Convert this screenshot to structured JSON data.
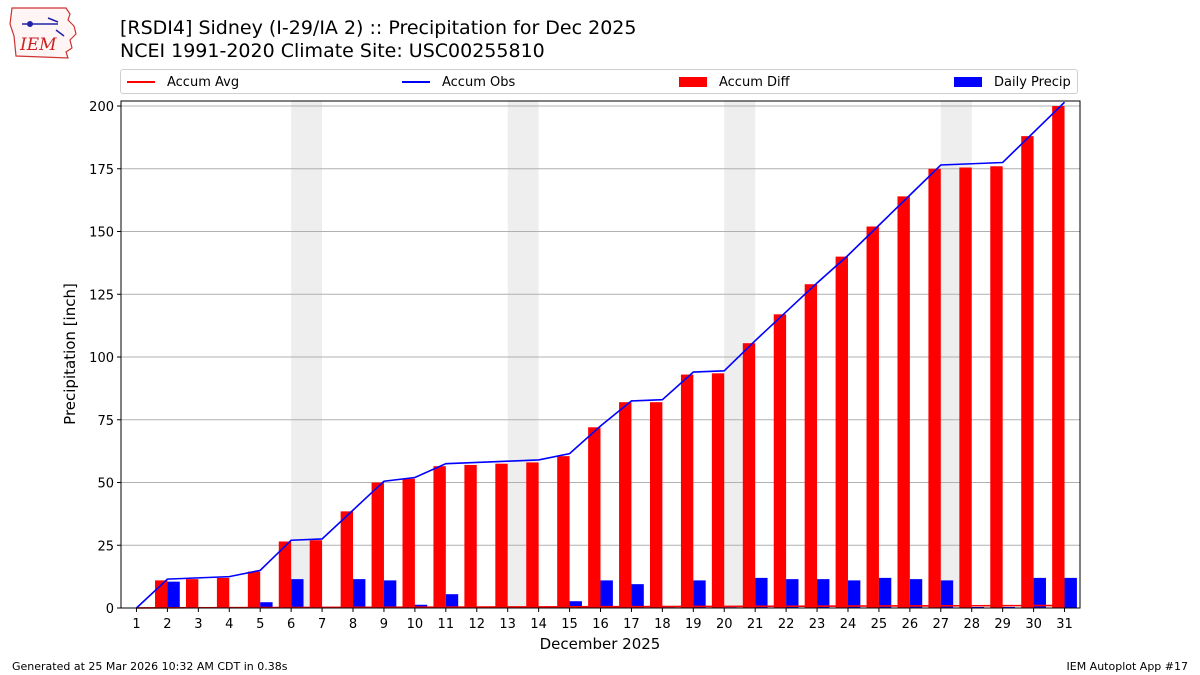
{
  "logo": {
    "text": "IEM"
  },
  "header": {
    "title_line1": "[RSDI4] Sidney (I-29/IA 2) :: Precipitation for Dec 2025",
    "title_line2": "NCEI 1991-2020 Climate Site: USC00255810"
  },
  "legend": {
    "accum_avg": "Accum Avg",
    "accum_obs": "Accum Obs",
    "accum_diff": "Accum Diff",
    "daily_precip": "Daily Precip",
    "placement": "top, outside plot"
  },
  "footer": {
    "generated": "Generated at 25 Mar 2026 10:32 AM CDT in 0.38s",
    "app": "IEM Autoplot App #17"
  },
  "colors": {
    "accum_avg": "#ff0000",
    "accum_obs": "#0000ff",
    "accum_diff": "#ff0000",
    "daily_precip": "#0000ff",
    "weekend_shade": "#eeeeee",
    "grid": "#b0b0b0"
  },
  "chart_data": {
    "type": "bar",
    "title": "[RSDI4] Sidney (I-29/IA 2) :: Precipitation for Dec 2025",
    "subtitle": "NCEI 1991-2020 Climate Site: USC00255810",
    "xlabel": "December 2025",
    "ylabel": "Precipitation [inch]",
    "ylim": [
      0,
      202
    ],
    "yticks": [
      0,
      25,
      50,
      75,
      100,
      125,
      150,
      175,
      200
    ],
    "grid": "horizontal",
    "categories": [
      "1",
      "2",
      "3",
      "4",
      "5",
      "6",
      "7",
      "8",
      "9",
      "10",
      "11",
      "12",
      "13",
      "14",
      "15",
      "16",
      "17",
      "18",
      "19",
      "20",
      "21",
      "22",
      "23",
      "24",
      "25",
      "26",
      "27",
      "28",
      "29",
      "30",
      "31"
    ],
    "weekend_days": [
      6,
      7,
      13,
      14,
      20,
      21,
      27,
      28
    ],
    "series": [
      {
        "name": "Accum Diff",
        "kind": "bar",
        "values": [
          0,
          11,
          11.5,
          12,
          14.5,
          26.5,
          27,
          38.5,
          50,
          51.5,
          56.5,
          57,
          57.5,
          58,
          60.5,
          72,
          82,
          82,
          93,
          93.5,
          105.5,
          117,
          129,
          140,
          152,
          164,
          175,
          175.5,
          176,
          188,
          200
        ]
      },
      {
        "name": "Daily Precip",
        "kind": "bar",
        "values": [
          0,
          10.5,
          0.3,
          0.3,
          2.3,
          11.5,
          0.4,
          11.5,
          11,
          1.3,
          5.5,
          0.3,
          0.3,
          0.4,
          2.7,
          11,
          9.5,
          0.3,
          11,
          0.3,
          12,
          11.5,
          11.5,
          11,
          12,
          11.5,
          11,
          0.4,
          0.4,
          12,
          12
        ]
      },
      {
        "name": "Accum Obs",
        "kind": "line",
        "values": [
          0,
          11.5,
          12,
          12.5,
          15,
          27,
          27.5,
          39,
          50.5,
          52,
          57.5,
          58,
          58.5,
          59,
          61.5,
          72.5,
          82.5,
          83,
          94,
          94.5,
          106.5,
          118,
          129.5,
          140.5,
          152.5,
          164.5,
          176.5,
          177,
          177.5,
          189.5,
          201.5
        ]
      },
      {
        "name": "Accum Avg",
        "kind": "line",
        "values": [
          0.03,
          0.06,
          0.1,
          0.13,
          0.16,
          0.19,
          0.22,
          0.26,
          0.29,
          0.32,
          0.35,
          0.38,
          0.42,
          0.45,
          0.48,
          0.51,
          0.54,
          0.58,
          0.61,
          0.64,
          0.67,
          0.7,
          0.74,
          0.77,
          0.8,
          0.83,
          0.86,
          0.9,
          0.93,
          0.96,
          0.99
        ]
      }
    ]
  }
}
